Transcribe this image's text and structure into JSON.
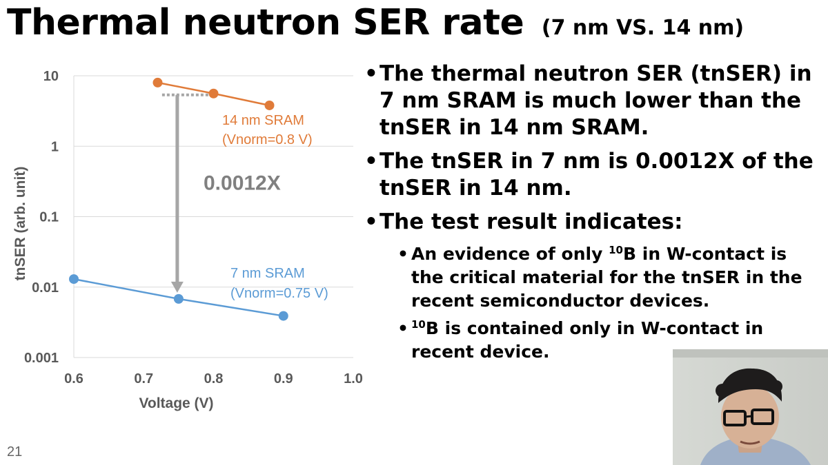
{
  "slide": {
    "title": "Thermal neutron SER rate",
    "title_suffix": "(7 nm VS. 14 nm)",
    "page_number": "21"
  },
  "bullets": {
    "b1": "The thermal neutron SER (tnSER) in 7 nm SRAM is much lower than the tnSER in 14 nm SRAM.",
    "b2": "The tnSER in 7 nm is 0.0012X of the tnSER in 14 nm.",
    "b3": "The test result indicates:",
    "sub1_sup": "10",
    "sub1_text": "B in W-contact is the critical material for the tnSER in the recent semiconductor devices.",
    "sub1_prefix": "An evidence of only ",
    "sub2_sup": "10",
    "sub2_text": "B is contained only in W-contact in recent device."
  },
  "chart_data": {
    "type": "line",
    "ylabel": "tnSER (arb. unit)",
    "xlabel": "Voltage (V)",
    "y_scale": "log",
    "xlim": [
      0.6,
      1.0
    ],
    "ylim": [
      0.001,
      10
    ],
    "x_ticks": [
      "0.6",
      "0.7",
      "0.8",
      "0.9",
      "1.0"
    ],
    "y_ticks": [
      "10",
      "1",
      "0.1",
      "0.01",
      "0.001"
    ],
    "grid": "horizontal",
    "series": [
      {
        "name": "14 nm SRAM",
        "annotation_line1": "14 nm SRAM",
        "annotation_line2": "(Vnorm=0.8 V)",
        "color": "#E07B39",
        "x": [
          0.72,
          0.8,
          0.88
        ],
        "y": [
          8.0,
          5.6,
          3.8
        ]
      },
      {
        "name": "7 nm SRAM",
        "annotation_line1": "7 nm SRAM",
        "annotation_line2": "(Vnorm=0.75 V)",
        "color": "#5B9BD5",
        "x": [
          0.6,
          0.75,
          0.9
        ],
        "y": [
          0.013,
          0.0068,
          0.0039
        ]
      }
    ],
    "ratio_label": "0.0012X",
    "ratio_arrow_color": "#A6A6A6"
  }
}
